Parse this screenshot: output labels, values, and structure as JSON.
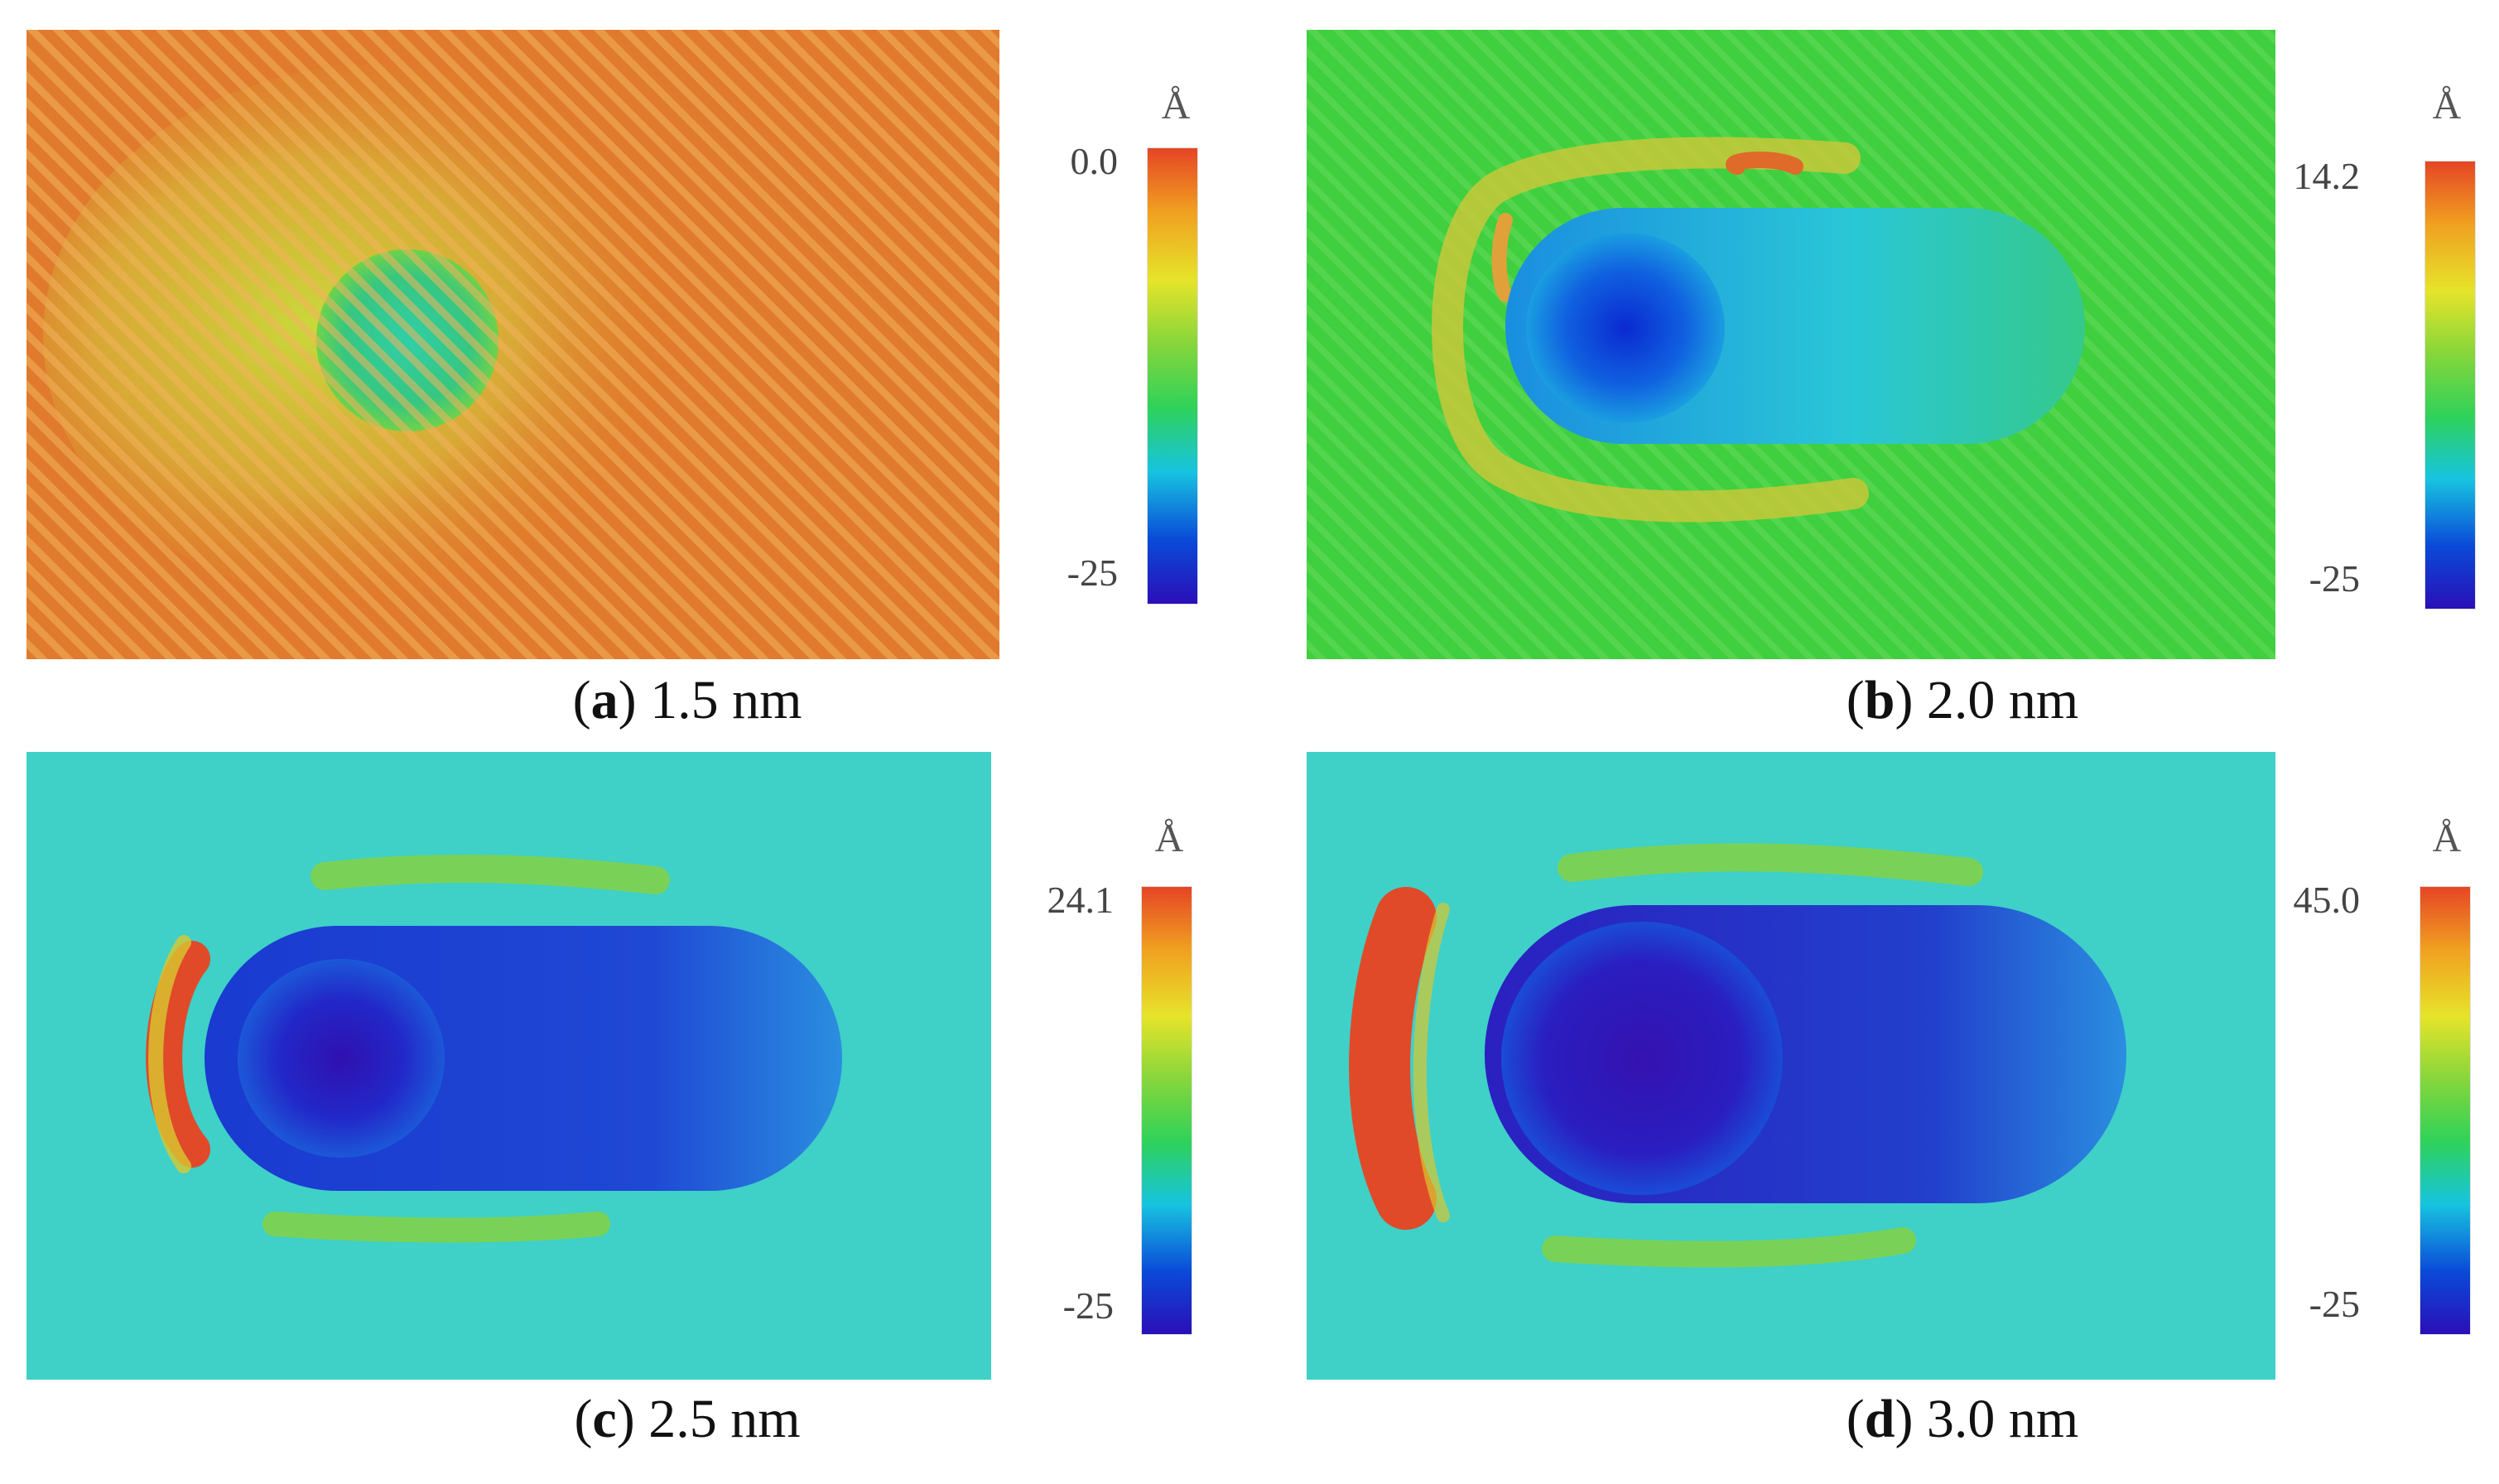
{
  "colormap": [
    "#2a0fb8",
    "#0a4ad8",
    "#17c4e0",
    "#2fd25a",
    "#86d63b",
    "#e6e42a",
    "#f0a020",
    "#e64525"
  ],
  "panels": [
    {
      "id": "a",
      "letter": "a",
      "size_label": "1.5 nm",
      "unit": "Å",
      "max_label": "0.0",
      "min_label": "-25",
      "background_color": "#e07a2c"
    },
    {
      "id": "b",
      "letter": "b",
      "size_label": "2.0 nm",
      "unit": "Å",
      "max_label": "14.2",
      "min_label": "-25",
      "background_color": "#3fcf3f"
    },
    {
      "id": "c",
      "letter": "c",
      "size_label": "2.5 nm",
      "unit": "Å",
      "max_label": "24.1",
      "min_label": "-25",
      "background_color": "#3fd0c8"
    },
    {
      "id": "d",
      "letter": "d",
      "size_label": "3.0 nm",
      "unit": "Å",
      "max_label": "45.0",
      "min_label": "-25",
      "background_color": "#3fd0c8"
    }
  ]
}
